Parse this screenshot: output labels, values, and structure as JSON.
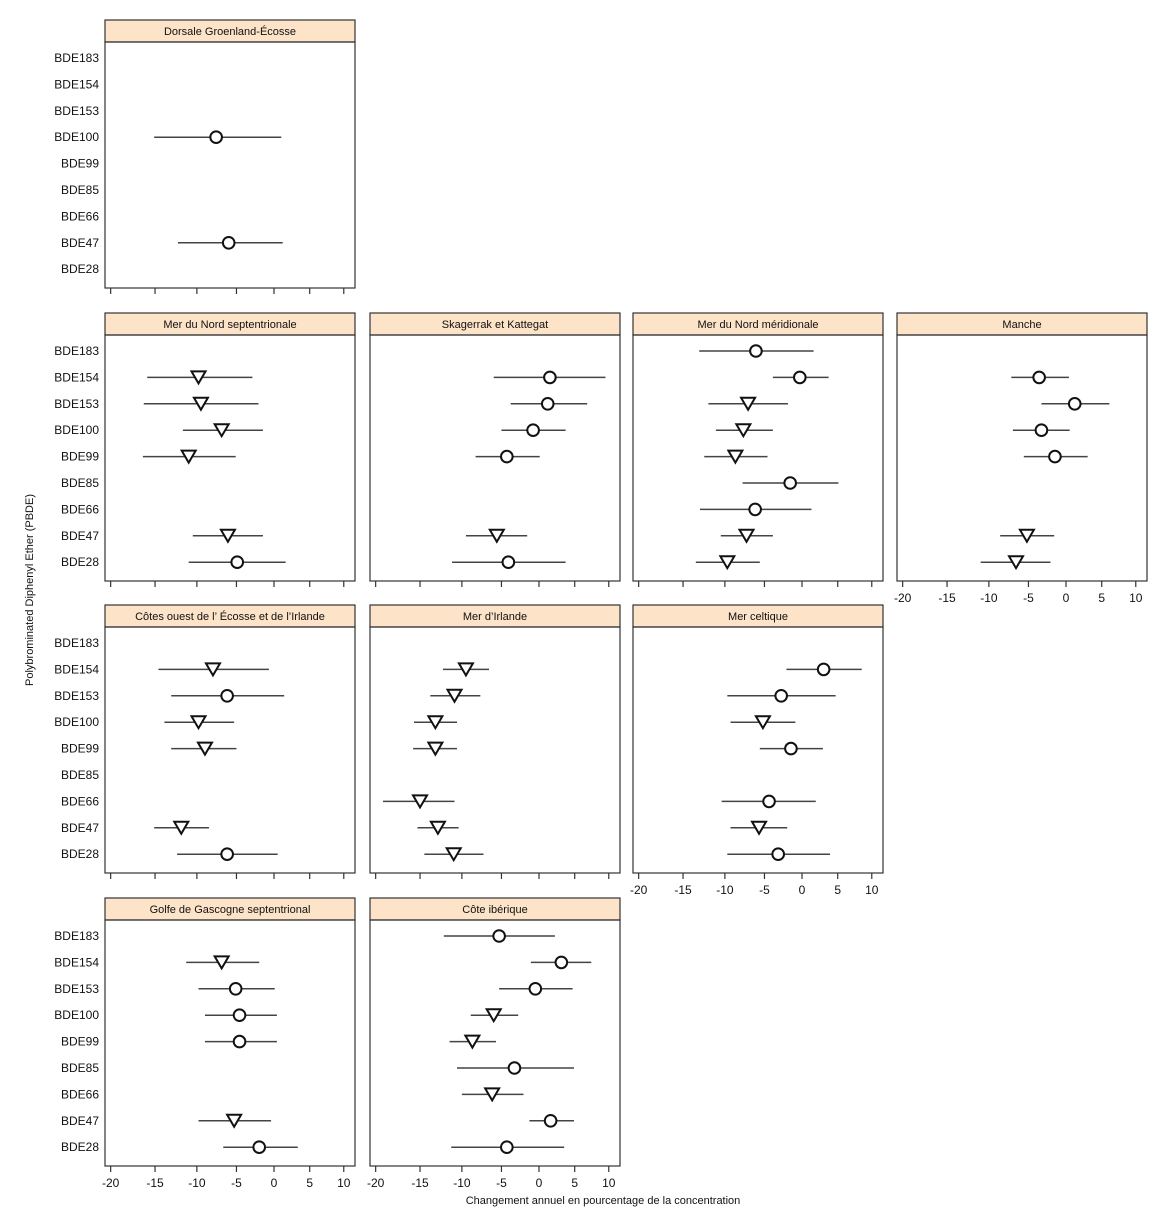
{
  "chart_data": {
    "type": "scatter",
    "subtype": "forest-plot (point estimate with interval), faceted",
    "xlabel": "Changement annuel en pourcentage de la concentration",
    "ylabel": "Polybrominated Diphenyl Ether (PBDE)",
    "xlim": [
      -20,
      10
    ],
    "xscale": "log-ratio (log(1 + x/100))",
    "xticks": [
      "-20",
      "-15",
      "-10",
      "-5",
      "0",
      "5",
      "10"
    ],
    "xtick_values": [
      -20,
      -15,
      -10,
      -5,
      0,
      5,
      10
    ],
    "categories": [
      "BDE183",
      "BDE154",
      "BDE153",
      "BDE100",
      "BDE99",
      "BDE85",
      "BDE66",
      "BDE47",
      "BDE28"
    ],
    "header_color": "#fde3c8",
    "markers": {
      "circle": "open circle",
      "triangle": "open downward triangle"
    },
    "panels": [
      {
        "title": "Dorsale Groenland-Écosse",
        "points": [
          {
            "congener": "BDE100",
            "estimate": -7.6,
            "lower": -15.1,
            "upper": 1.0,
            "marker": "circle"
          },
          {
            "congener": "BDE47",
            "estimate": -6.0,
            "lower": -12.3,
            "upper": 1.2,
            "marker": "circle"
          }
        ]
      },
      {
        "title": "Mer du Nord septentrionale",
        "points": [
          {
            "congener": "BDE154",
            "estimate": -9.8,
            "lower": -15.9,
            "upper": -2.9,
            "marker": "triangle"
          },
          {
            "congener": "BDE153",
            "estimate": -9.5,
            "lower": -16.3,
            "upper": -2.1,
            "marker": "triangle"
          },
          {
            "congener": "BDE100",
            "estimate": -6.9,
            "lower": -11.7,
            "upper": -1.5,
            "marker": "triangle"
          },
          {
            "congener": "BDE99",
            "estimate": -11.0,
            "lower": -16.4,
            "upper": -5.1,
            "marker": "triangle"
          },
          {
            "congener": "BDE47",
            "estimate": -6.1,
            "lower": -10.5,
            "upper": -1.5,
            "marker": "triangle"
          },
          {
            "congener": "BDE28",
            "estimate": -4.9,
            "lower": -11.0,
            "upper": 1.6,
            "marker": "circle"
          }
        ]
      },
      {
        "title": "Skagerrak et Kattegat",
        "points": [
          {
            "congener": "BDE154",
            "estimate": 1.5,
            "lower": -6.0,
            "upper": 9.5,
            "marker": "circle"
          },
          {
            "congener": "BDE153",
            "estimate": 1.2,
            "lower": -3.8,
            "upper": 6.8,
            "marker": "circle"
          },
          {
            "congener": "BDE100",
            "estimate": -0.8,
            "lower": -5.0,
            "upper": 3.7,
            "marker": "circle"
          },
          {
            "congener": "BDE99",
            "estimate": -4.3,
            "lower": -8.3,
            "upper": 0.1,
            "marker": "circle"
          },
          {
            "congener": "BDE47",
            "estimate": -5.6,
            "lower": -9.5,
            "upper": -1.6,
            "marker": "triangle"
          },
          {
            "congener": "BDE28",
            "estimate": -4.1,
            "lower": -11.2,
            "upper": 3.7,
            "marker": "circle"
          }
        ]
      },
      {
        "title": "Mer du Nord méridionale",
        "points": [
          {
            "congener": "BDE183",
            "estimate": -6.1,
            "lower": -13.1,
            "upper": 1.6,
            "marker": "circle"
          },
          {
            "congener": "BDE154",
            "estimate": -0.3,
            "lower": -3.9,
            "upper": 3.7,
            "marker": "circle"
          },
          {
            "congener": "BDE153",
            "estimate": -7.1,
            "lower": -12.0,
            "upper": -1.9,
            "marker": "triangle"
          },
          {
            "congener": "BDE100",
            "estimate": -7.7,
            "lower": -11.1,
            "upper": -3.9,
            "marker": "triangle"
          },
          {
            "congener": "BDE99",
            "estimate": -8.7,
            "lower": -12.5,
            "upper": -4.6,
            "marker": "triangle"
          },
          {
            "congener": "BDE85",
            "estimate": -1.6,
            "lower": -7.8,
            "upper": 5.1,
            "marker": "circle"
          },
          {
            "congener": "BDE66",
            "estimate": -6.2,
            "lower": -13.0,
            "upper": 1.3,
            "marker": "circle"
          },
          {
            "congener": "BDE47",
            "estimate": -7.3,
            "lower": -10.5,
            "upper": -3.9,
            "marker": "triangle"
          },
          {
            "congener": "BDE28",
            "estimate": -9.7,
            "lower": -13.5,
            "upper": -5.6,
            "marker": "triangle"
          }
        ]
      },
      {
        "title": "Manche",
        "points": [
          {
            "congener": "BDE154",
            "estimate": -3.6,
            "lower": -7.2,
            "upper": 0.4,
            "marker": "circle"
          },
          {
            "congener": "BDE153",
            "estimate": 1.2,
            "lower": -3.3,
            "upper": 6.1,
            "marker": "circle"
          },
          {
            "congener": "BDE100",
            "estimate": -3.3,
            "lower": -7.0,
            "upper": 0.5,
            "marker": "circle"
          },
          {
            "congener": "BDE99",
            "estimate": -1.5,
            "lower": -5.6,
            "upper": 3.0,
            "marker": "circle"
          },
          {
            "congener": "BDE47",
            "estimate": -5.2,
            "lower": -8.6,
            "upper": -1.6,
            "marker": "triangle"
          },
          {
            "congener": "BDE28",
            "estimate": -6.6,
            "lower": -11.0,
            "upper": -2.1,
            "marker": "triangle"
          }
        ]
      },
      {
        "title": "Côtes ouest de l’ Écosse et de l’Irlande",
        "points": [
          {
            "congener": "BDE154",
            "estimate": -8.0,
            "lower": -14.6,
            "upper": -0.7,
            "marker": "triangle"
          },
          {
            "congener": "BDE153",
            "estimate": -6.2,
            "lower": -13.1,
            "upper": 1.4,
            "marker": "circle"
          },
          {
            "congener": "BDE100",
            "estimate": -9.8,
            "lower": -13.9,
            "upper": -5.3,
            "marker": "triangle"
          },
          {
            "congener": "BDE99",
            "estimate": -9.0,
            "lower": -13.1,
            "upper": -5.0,
            "marker": "triangle"
          },
          {
            "congener": "BDE47",
            "estimate": -11.9,
            "lower": -15.1,
            "upper": -8.5,
            "marker": "triangle"
          },
          {
            "congener": "BDE28",
            "estimate": -6.2,
            "lower": -12.4,
            "upper": 0.5,
            "marker": "circle"
          }
        ]
      },
      {
        "title": "Mer d’Irlande",
        "points": [
          {
            "congener": "BDE154",
            "estimate": -9.5,
            "lower": -12.3,
            "upper": -6.6,
            "marker": "triangle"
          },
          {
            "congener": "BDE153",
            "estimate": -10.9,
            "lower": -13.8,
            "upper": -7.7,
            "marker": "triangle"
          },
          {
            "congener": "BDE100",
            "estimate": -13.2,
            "lower": -15.7,
            "upper": -10.6,
            "marker": "triangle"
          },
          {
            "congener": "BDE99",
            "estimate": -13.2,
            "lower": -15.8,
            "upper": -10.6,
            "marker": "triangle"
          },
          {
            "congener": "BDE66",
            "estimate": -15.0,
            "lower": -19.2,
            "upper": -10.9,
            "marker": "triangle"
          },
          {
            "congener": "BDE47",
            "estimate": -12.9,
            "lower": -15.3,
            "upper": -10.4,
            "marker": "triangle"
          },
          {
            "congener": "BDE28",
            "estimate": -11.0,
            "lower": -14.5,
            "upper": -7.3,
            "marker": "triangle"
          }
        ]
      },
      {
        "title": "Mer celtique",
        "points": [
          {
            "congener": "BDE154",
            "estimate": 3.0,
            "lower": -2.1,
            "upper": 8.5,
            "marker": "circle"
          },
          {
            "congener": "BDE153",
            "estimate": -2.8,
            "lower": -9.7,
            "upper": 4.7,
            "marker": "circle"
          },
          {
            "congener": "BDE100",
            "estimate": -5.2,
            "lower": -9.3,
            "upper": -0.9,
            "marker": "triangle"
          },
          {
            "congener": "BDE99",
            "estimate": -1.5,
            "lower": -5.6,
            "upper": 2.9,
            "marker": "circle"
          },
          {
            "congener": "BDE66",
            "estimate": -4.4,
            "lower": -10.4,
            "upper": 1.9,
            "marker": "circle"
          },
          {
            "congener": "BDE47",
            "estimate": -5.7,
            "lower": -9.3,
            "upper": -2.0,
            "marker": "triangle"
          },
          {
            "congener": "BDE28",
            "estimate": -3.2,
            "lower": -9.7,
            "upper": 3.9,
            "marker": "circle"
          }
        ]
      },
      {
        "title": "Golfe de Gascogne septentrional",
        "points": [
          {
            "congener": "BDE154",
            "estimate": -6.9,
            "lower": -11.3,
            "upper": -2.0,
            "marker": "triangle"
          },
          {
            "congener": "BDE153",
            "estimate": -5.1,
            "lower": -9.8,
            "upper": 0.1,
            "marker": "circle"
          },
          {
            "congener": "BDE100",
            "estimate": -4.6,
            "lower": -9.0,
            "upper": 0.4,
            "marker": "circle"
          },
          {
            "congener": "BDE99",
            "estimate": -4.6,
            "lower": -9.0,
            "upper": 0.4,
            "marker": "circle"
          },
          {
            "congener": "BDE47",
            "estimate": -5.3,
            "lower": -9.8,
            "upper": -0.4,
            "marker": "triangle"
          },
          {
            "congener": "BDE28",
            "estimate": -2.0,
            "lower": -6.7,
            "upper": 3.3,
            "marker": "circle"
          }
        ]
      },
      {
        "title": "Côte ibérique",
        "points": [
          {
            "congener": "BDE183",
            "estimate": -5.3,
            "lower": -12.2,
            "upper": 2.2,
            "marker": "circle"
          },
          {
            "congener": "BDE154",
            "estimate": 3.1,
            "lower": -1.1,
            "upper": 7.4,
            "marker": "circle"
          },
          {
            "congener": "BDE153",
            "estimate": -0.5,
            "lower": -5.3,
            "upper": 4.7,
            "marker": "circle"
          },
          {
            "congener": "BDE100",
            "estimate": -6.0,
            "lower": -8.9,
            "upper": -2.8,
            "marker": "triangle"
          },
          {
            "congener": "BDE99",
            "estimate": -8.7,
            "lower": -11.5,
            "upper": -5.7,
            "marker": "triangle"
          },
          {
            "congener": "BDE85",
            "estimate": -3.3,
            "lower": -10.6,
            "upper": 4.9,
            "marker": "circle"
          },
          {
            "congener": "BDE66",
            "estimate": -6.2,
            "lower": -10.0,
            "upper": -2.1,
            "marker": "triangle"
          },
          {
            "congener": "BDE47",
            "estimate": 1.6,
            "lower": -1.3,
            "upper": 4.9,
            "marker": "circle"
          },
          {
            "congener": "BDE28",
            "estimate": -4.3,
            "lower": -11.3,
            "upper": 3.5,
            "marker": "circle"
          }
        ]
      }
    ]
  }
}
